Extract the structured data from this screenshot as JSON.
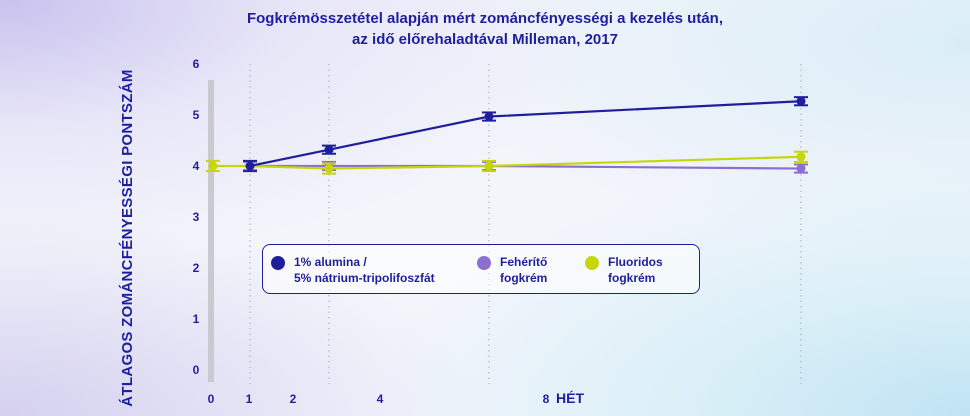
{
  "title_line1": "Fogkrémösszetétel alapján mért zománcfényességi a kezelés után,",
  "title_line2": "az idő előrehaladtával Milleman, 2017",
  "chart_data": {
    "type": "line",
    "title": "Fogkrémösszetétel alapján mért zománcfényességi a kezelés után, az idő előrehaladtával Milleman, 2017",
    "xlabel": "HÉT",
    "ylabel": "ÁTLAGOS ZOMÁNCFÉNYESSÉGI PONTSZÁM",
    "xticks": [
      "0",
      "1",
      "2",
      "4",
      "8"
    ],
    "yticks": [
      "0",
      "1",
      "2",
      "3",
      "4",
      "5",
      "6"
    ],
    "ylim": [
      0,
      6
    ],
    "grid": "vertical dotted",
    "legend_position": "inside-bottom",
    "series": [
      {
        "name": "1% alumina / 5% nátrium-tripolifoszfát",
        "color": "#1f1f9e",
        "x": [
          1,
          2,
          4,
          8
        ],
        "y": [
          4.0,
          4.32,
          4.97,
          5.27
        ],
        "error": [
          0.1,
          0.08,
          0.08,
          0.08
        ]
      },
      {
        "name": "Fehérítő fogkrém",
        "color": "#8c6fd1",
        "x": [
          1,
          2,
          4,
          8
        ],
        "y": [
          4.0,
          4.0,
          4.0,
          3.95
        ],
        "error": [
          0.08,
          0.08,
          0.08,
          0.08
        ]
      },
      {
        "name": "Fluoridos fogkrém",
        "color": "#c6d60c",
        "x": [
          0.5,
          1,
          2,
          4,
          8
        ],
        "y": [
          4.0,
          4.0,
          3.95,
          4.0,
          4.18
        ],
        "error": [
          0.1,
          0.1,
          0.1,
          0.1,
          0.1
        ]
      }
    ]
  },
  "legend": [
    {
      "line1": "1% alumina /",
      "line2": "5% nátrium-tripolifoszfát",
      "color": "#1f1f9e"
    },
    {
      "line1": "Fehérítő",
      "line2": "fogkrém",
      "color": "#8c6fd1"
    },
    {
      "line1": "Fluoridos",
      "line2": "fogkrém",
      "color": "#c6d60c"
    }
  ]
}
